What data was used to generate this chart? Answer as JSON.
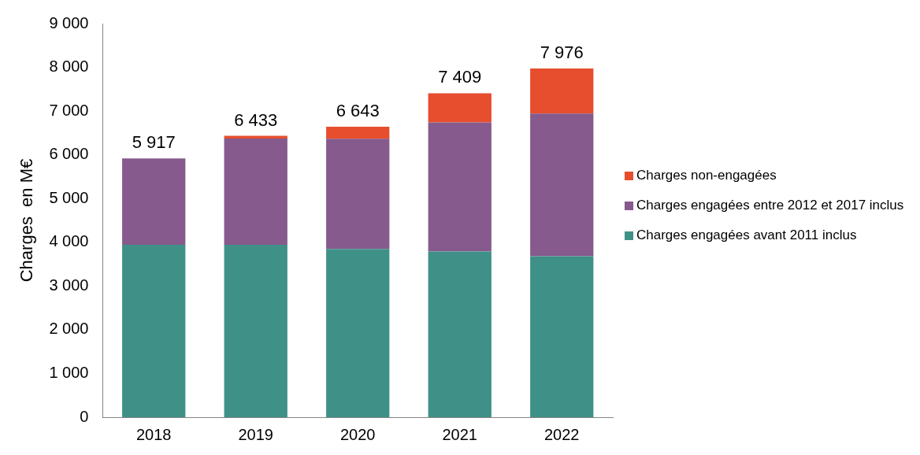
{
  "chart_data": {
    "type": "bar",
    "stacked": true,
    "ylabel": "Charges  en M€",
    "categories": [
      "2018",
      "2019",
      "2020",
      "2021",
      "2022"
    ],
    "series": [
      {
        "name": "Charges engagées avant 2011 inclus",
        "color": "#3f9187",
        "values": [
          3940,
          3940,
          3846,
          3790,
          3680
        ]
      },
      {
        "name": "Charges engagées entre 2012 et 2017 inclus",
        "color": "#865a8c",
        "values": [
          1977,
          2430,
          2520,
          2950,
          3265
        ]
      },
      {
        "name": "Charges non-engagées",
        "color": "#e64e2e",
        "values": [
          null,
          63,
          277,
          669,
          1031
        ]
      }
    ],
    "totals": [
      "5 917",
      "6 433",
      "6 643",
      "7 409",
      "7 976"
    ],
    "ylim": [
      0,
      9000
    ],
    "yticks": [
      {
        "value": 0,
        "label": "0"
      },
      {
        "value": 1000,
        "label": "1 000"
      },
      {
        "value": 2000,
        "label": "2 000"
      },
      {
        "value": 3000,
        "label": "3 000"
      },
      {
        "value": 4000,
        "label": "4 000"
      },
      {
        "value": 5000,
        "label": "5 000"
      },
      {
        "value": 6000,
        "label": "6 000"
      },
      {
        "value": 7000,
        "label": "7 000"
      },
      {
        "value": 8000,
        "label": "8 000"
      },
      {
        "value": 9000,
        "label": "9 000"
      }
    ],
    "grid": false,
    "legend": "right"
  }
}
